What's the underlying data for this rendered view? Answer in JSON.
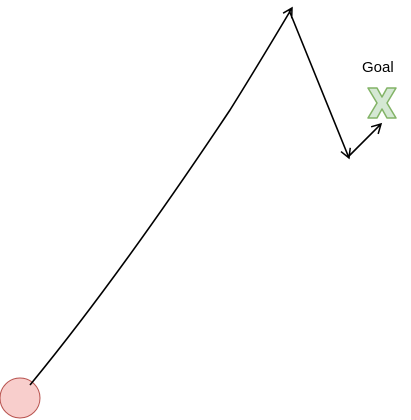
{
  "diagram": {
    "goal_label": "Goal",
    "start_marker": {
      "shape": "circle",
      "fill": "#f8cecc",
      "stroke": "#b85450"
    },
    "goal_marker": {
      "shape": "x-cross",
      "fill": "#d5e8d4",
      "stroke": "#82b366"
    },
    "path": {
      "stroke": "#000000",
      "arrowheads": "open",
      "segments": 3
    }
  }
}
